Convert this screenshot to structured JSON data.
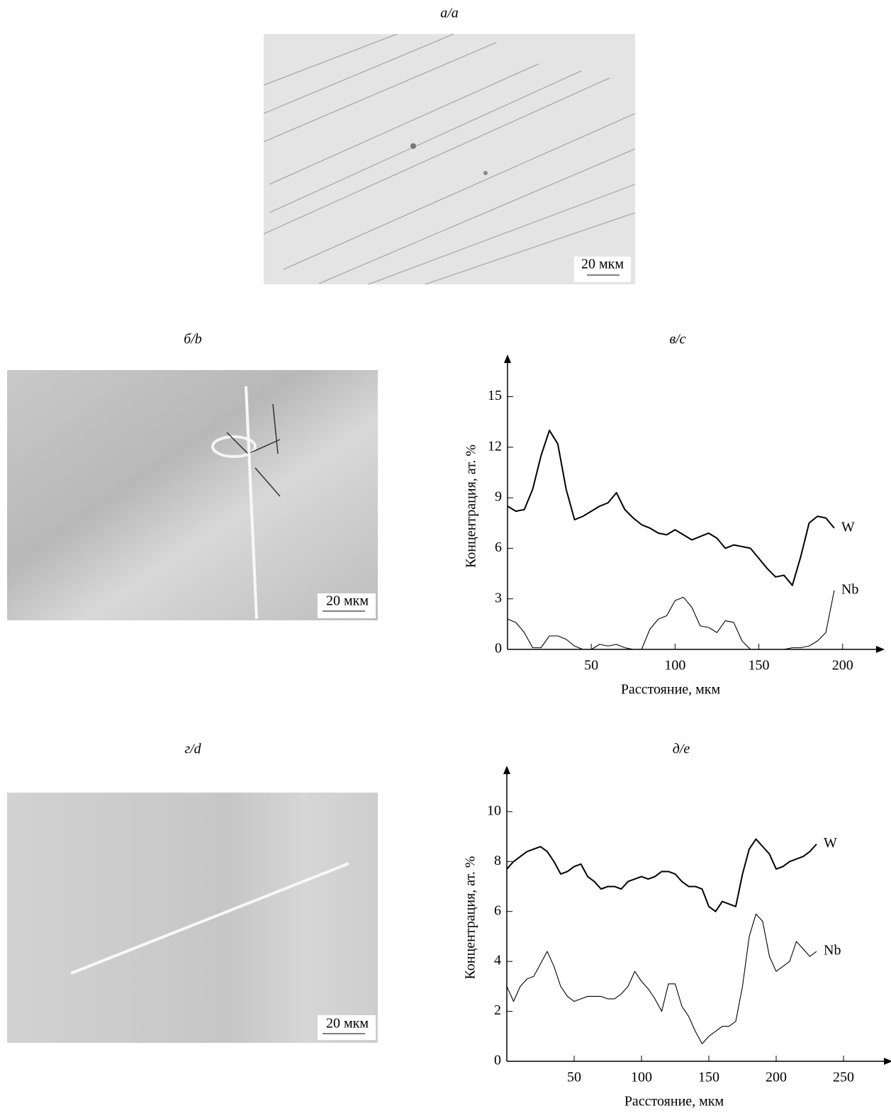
{
  "panels": [
    {
      "label": "а/a",
      "scale_bar": "20 мкм"
    },
    {
      "label": "б/b",
      "scale_bar": "20 мкм"
    },
    {
      "label": "г/d",
      "scale_bar": "20 мкм"
    }
  ],
  "chart_data": [
    {
      "type": "line",
      "title": "в/c",
      "x_label": "Расстояние, мкм",
      "y_label": "Концентрация, ат. %",
      "x": [
        0,
        5,
        10,
        15,
        20,
        25,
        30,
        35,
        40,
        45,
        50,
        55,
        60,
        65,
        70,
        75,
        80,
        85,
        90,
        95,
        100,
        105,
        110,
        115,
        120,
        125,
        130,
        135,
        140,
        145,
        150,
        155,
        160,
        165,
        170,
        175,
        180,
        185,
        190,
        195
      ],
      "series": [
        {
          "name": "W",
          "color": "#000000",
          "values": [
            8.5,
            8.2,
            8.3,
            9.5,
            11.5,
            13.0,
            12.2,
            9.5,
            7.7,
            7.9,
            8.2,
            8.5,
            8.7,
            9.3,
            8.3,
            7.8,
            7.4,
            7.2,
            6.9,
            6.8,
            7.1,
            6.8,
            6.5,
            6.7,
            6.9,
            6.6,
            6.0,
            6.2,
            6.1,
            6.0,
            5.4,
            4.8,
            4.3,
            4.4,
            3.8,
            5.5,
            7.5,
            7.9,
            7.8,
            7.2
          ]
        },
        {
          "name": "Nb",
          "color": "#000000",
          "values": [
            1.8,
            1.6,
            1.0,
            0.1,
            0.1,
            0.8,
            0.8,
            0.6,
            0.2,
            0,
            0,
            0.3,
            0.2,
            0.3,
            0.1,
            0,
            0,
            1.2,
            1.8,
            2.0,
            2.9,
            3.1,
            2.5,
            1.4,
            1.3,
            1.0,
            1.7,
            1.6,
            0.5,
            0,
            0,
            0,
            0,
            0,
            0.1,
            0.1,
            0.2,
            0.5,
            1.0,
            3.5
          ]
        }
      ],
      "xlim": [
        0,
        220
      ],
      "ylim": [
        0,
        17
      ],
      "xticks": [
        50,
        100,
        150,
        200
      ],
      "yticks": [
        0,
        3,
        6,
        9,
        12,
        15
      ]
    },
    {
      "type": "line",
      "title": "д/e",
      "x_label": "Расстояние, мкм",
      "y_label": "Концентрация, ат. %",
      "x": [
        0,
        5,
        10,
        15,
        20,
        25,
        30,
        35,
        40,
        45,
        50,
        55,
        60,
        65,
        70,
        75,
        80,
        85,
        90,
        95,
        100,
        105,
        110,
        115,
        120,
        125,
        130,
        135,
        140,
        145,
        150,
        155,
        160,
        165,
        170,
        175,
        180,
        185,
        190,
        195,
        200,
        205,
        210,
        215,
        220,
        225,
        230
      ],
      "series": [
        {
          "name": "W",
          "color": "#000000",
          "values": [
            7.7,
            8.0,
            8.2,
            8.4,
            8.5,
            8.6,
            8.4,
            8.0,
            7.5,
            7.6,
            7.8,
            7.9,
            7.4,
            7.2,
            6.9,
            7.0,
            7.0,
            6.9,
            7.2,
            7.3,
            7.4,
            7.3,
            7.4,
            7.6,
            7.6,
            7.5,
            7.2,
            7.0,
            7.0,
            6.9,
            6.2,
            6.0,
            6.4,
            6.3,
            6.2,
            7.5,
            8.5,
            8.9,
            8.6,
            8.3,
            7.7,
            7.8,
            8.0,
            8.1,
            8.2,
            8.4,
            8.7
          ]
        },
        {
          "name": "Nb",
          "color": "#000000",
          "values": [
            3.0,
            2.4,
            3.0,
            3.3,
            3.4,
            3.9,
            4.4,
            3.8,
            3.0,
            2.6,
            2.4,
            2.5,
            2.6,
            2.6,
            2.6,
            2.5,
            2.5,
            2.7,
            3.0,
            3.6,
            3.2,
            2.9,
            2.5,
            2.0,
            3.1,
            3.1,
            2.2,
            1.8,
            1.2,
            0.7,
            1.0,
            1.2,
            1.4,
            1.4,
            1.6,
            3.0,
            5.0,
            5.9,
            5.6,
            4.2,
            3.6,
            3.8,
            4.0,
            4.8,
            4.5,
            4.2,
            4.4
          ]
        }
      ],
      "xlim": [
        0,
        280
      ],
      "ylim": [
        0,
        11.5
      ],
      "xticks": [
        50,
        100,
        150,
        200,
        250
      ],
      "yticks": [
        0,
        2,
        4,
        6,
        8,
        10
      ]
    }
  ]
}
